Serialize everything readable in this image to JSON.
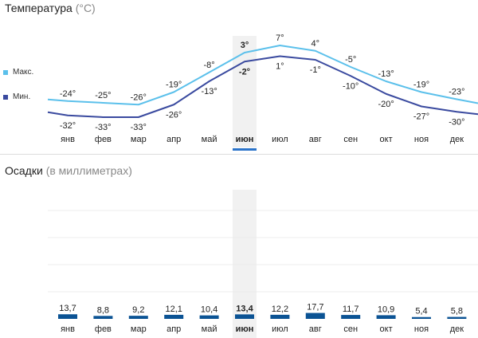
{
  "temperature": {
    "title": "Температура",
    "unit": "(°C)",
    "legend_max": "Макс.",
    "legend_min": "Мин.",
    "color_max": "#5bc0eb",
    "color_min": "#3a4a9f"
  },
  "precipitation": {
    "title": "Осадки",
    "unit": "(в миллиметрах)",
    "color": "#0b5394"
  },
  "highlight_index": 5,
  "highlight_color": "#2b73c9",
  "chart_data": [
    {
      "type": "line",
      "title": "Температура (°C)",
      "categories": [
        "янв",
        "фев",
        "мар",
        "апр",
        "май",
        "июн",
        "июл",
        "авг",
        "сен",
        "окт",
        "ноя",
        "дек"
      ],
      "series": [
        {
          "name": "Макс.",
          "values": [
            -24,
            -25,
            -26,
            -19,
            -8,
            3,
            7,
            4,
            -5,
            -13,
            -19,
            -23
          ],
          "labels": [
            "-24°",
            "-25°",
            "-26°",
            "-19°",
            "-8°",
            "3°",
            "7°",
            "4°",
            "-5°",
            "-13°",
            "-19°",
            "-23°"
          ]
        },
        {
          "name": "Мин.",
          "values": [
            -32,
            -33,
            -33,
            -26,
            -13,
            -2,
            1,
            -1,
            -10,
            -20,
            -27,
            -30
          ],
          "labels": [
            "-32°",
            "-33°",
            "-33°",
            "-26°",
            "-13°",
            "-2°",
            "1°",
            "-1°",
            "-10°",
            "-20°",
            "-27°",
            "-30°"
          ]
        }
      ],
      "ylim": [
        -36,
        10
      ]
    },
    {
      "type": "bar",
      "title": "Осадки (в миллиметрах)",
      "categories": [
        "янв",
        "фев",
        "мар",
        "апр",
        "май",
        "июн",
        "июл",
        "авг",
        "сен",
        "окт",
        "ноя",
        "дек"
      ],
      "values": [
        13.7,
        8.8,
        9.2,
        12.1,
        10.4,
        13.4,
        12.2,
        17.7,
        11.7,
        10.9,
        5.4,
        5.8
      ],
      "labels": [
        "13,7",
        "8,8",
        "9,2",
        "12,1",
        "10,4",
        "13,4",
        "12,2",
        "17,7",
        "11,7",
        "10,9",
        "5,4",
        "5,8"
      ],
      "ylim": [
        0,
        150
      ]
    }
  ]
}
